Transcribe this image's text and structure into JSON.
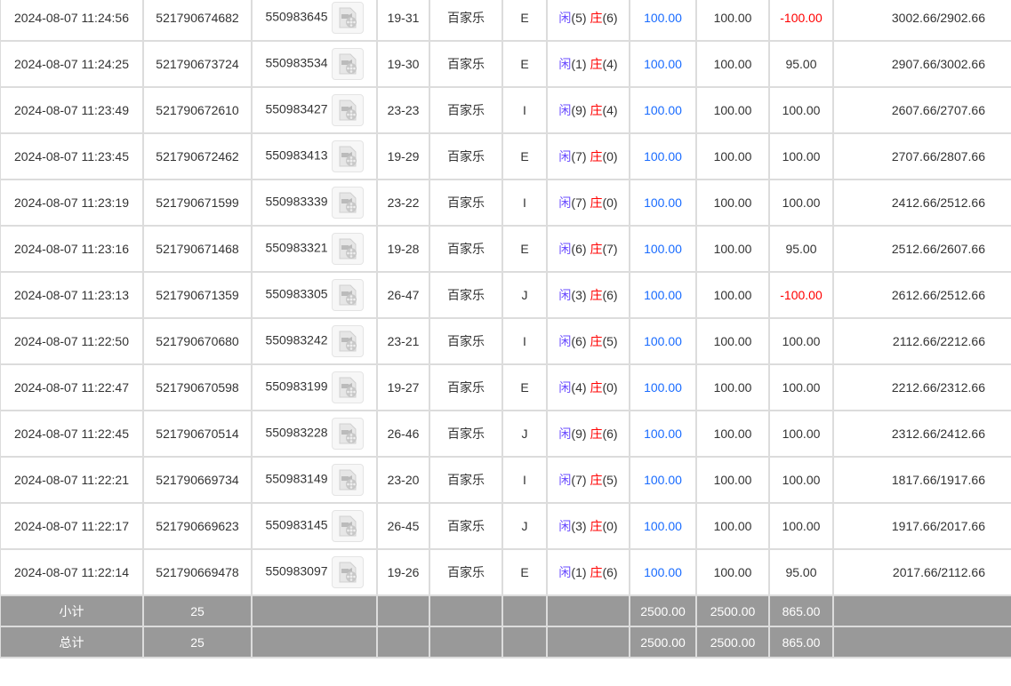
{
  "rows": [
    {
      "time": "2024-08-07 11:24:56",
      "order": "521790674682",
      "round": "550983645",
      "table": "19-31",
      "game": "百家乐",
      "bet": "E",
      "player": "闲",
      "player_pts": "(5)",
      "banker": "庄",
      "banker_pts": "(6)",
      "amount": "100.00",
      "valid": "100.00",
      "win": "-100.00",
      "balance": "3002.66/2902.66"
    },
    {
      "time": "2024-08-07 11:24:25",
      "order": "521790673724",
      "round": "550983534",
      "table": "19-30",
      "game": "百家乐",
      "bet": "E",
      "player": "闲",
      "player_pts": "(1)",
      "banker": "庄",
      "banker_pts": "(4)",
      "amount": "100.00",
      "valid": "100.00",
      "win": "95.00",
      "balance": "2907.66/3002.66"
    },
    {
      "time": "2024-08-07 11:23:49",
      "order": "521790672610",
      "round": "550983427",
      "table": "23-23",
      "game": "百家乐",
      "bet": "I",
      "player": "闲",
      "player_pts": "(9)",
      "banker": "庄",
      "banker_pts": "(4)",
      "amount": "100.00",
      "valid": "100.00",
      "win": "100.00",
      "balance": "2607.66/2707.66"
    },
    {
      "time": "2024-08-07 11:23:45",
      "order": "521790672462",
      "round": "550983413",
      "table": "19-29",
      "game": "百家乐",
      "bet": "E",
      "player": "闲",
      "player_pts": "(7)",
      "banker": "庄",
      "banker_pts": "(0)",
      "amount": "100.00",
      "valid": "100.00",
      "win": "100.00",
      "balance": "2707.66/2807.66"
    },
    {
      "time": "2024-08-07 11:23:19",
      "order": "521790671599",
      "round": "550983339",
      "table": "23-22",
      "game": "百家乐",
      "bet": "I",
      "player": "闲",
      "player_pts": "(7)",
      "banker": "庄",
      "banker_pts": "(0)",
      "amount": "100.00",
      "valid": "100.00",
      "win": "100.00",
      "balance": "2412.66/2512.66"
    },
    {
      "time": "2024-08-07 11:23:16",
      "order": "521790671468",
      "round": "550983321",
      "table": "19-28",
      "game": "百家乐",
      "bet": "E",
      "player": "闲",
      "player_pts": "(6)",
      "banker": "庄",
      "banker_pts": "(7)",
      "amount": "100.00",
      "valid": "100.00",
      "win": "95.00",
      "balance": "2512.66/2607.66"
    },
    {
      "time": "2024-08-07 11:23:13",
      "order": "521790671359",
      "round": "550983305",
      "table": "26-47",
      "game": "百家乐",
      "bet": "J",
      "player": "闲",
      "player_pts": "(3)",
      "banker": "庄",
      "banker_pts": "(6)",
      "amount": "100.00",
      "valid": "100.00",
      "win": "-100.00",
      "balance": "2612.66/2512.66"
    },
    {
      "time": "2024-08-07 11:22:50",
      "order": "521790670680",
      "round": "550983242",
      "table": "23-21",
      "game": "百家乐",
      "bet": "I",
      "player": "闲",
      "player_pts": "(6)",
      "banker": "庄",
      "banker_pts": "(5)",
      "amount": "100.00",
      "valid": "100.00",
      "win": "100.00",
      "balance": "2112.66/2212.66"
    },
    {
      "time": "2024-08-07 11:22:47",
      "order": "521790670598",
      "round": "550983199",
      "table": "19-27",
      "game": "百家乐",
      "bet": "E",
      "player": "闲",
      "player_pts": "(4)",
      "banker": "庄",
      "banker_pts": "(0)",
      "amount": "100.00",
      "valid": "100.00",
      "win": "100.00",
      "balance": "2212.66/2312.66"
    },
    {
      "time": "2024-08-07 11:22:45",
      "order": "521790670514",
      "round": "550983228",
      "table": "26-46",
      "game": "百家乐",
      "bet": "J",
      "player": "闲",
      "player_pts": "(9)",
      "banker": "庄",
      "banker_pts": "(6)",
      "amount": "100.00",
      "valid": "100.00",
      "win": "100.00",
      "balance": "2312.66/2412.66"
    },
    {
      "time": "2024-08-07 11:22:21",
      "order": "521790669734",
      "round": "550983149",
      "table": "23-20",
      "game": "百家乐",
      "bet": "I",
      "player": "闲",
      "player_pts": "(7)",
      "banker": "庄",
      "banker_pts": "(5)",
      "amount": "100.00",
      "valid": "100.00",
      "win": "100.00",
      "balance": "1817.66/1917.66"
    },
    {
      "time": "2024-08-07 11:22:17",
      "order": "521790669623",
      "round": "550983145",
      "table": "26-45",
      "game": "百家乐",
      "bet": "J",
      "player": "闲",
      "player_pts": "(3)",
      "banker": "庄",
      "banker_pts": "(0)",
      "amount": "100.00",
      "valid": "100.00",
      "win": "100.00",
      "balance": "1917.66/2017.66"
    },
    {
      "time": "2024-08-07 11:22:14",
      "order": "521790669478",
      "round": "550983097",
      "table": "19-26",
      "game": "百家乐",
      "bet": "E",
      "player": "闲",
      "player_pts": "(1)",
      "banker": "庄",
      "banker_pts": "(6)",
      "amount": "100.00",
      "valid": "100.00",
      "win": "95.00",
      "balance": "2017.66/2112.66"
    }
  ],
  "subtotal": {
    "label": "小计",
    "count": "25",
    "amount": "2500.00",
    "valid": "2500.00",
    "win": "865.00"
  },
  "total": {
    "label": "总计",
    "count": "25",
    "amount": "2500.00",
    "valid": "2500.00",
    "win": "865.00"
  },
  "colors": {
    "amount": "#1a6cff",
    "loss": "#ff0000",
    "player": "#6a4cff",
    "banker": "#ff0000",
    "footer_bg": "#999999"
  },
  "icons": {
    "replay": "video-file-icon"
  }
}
